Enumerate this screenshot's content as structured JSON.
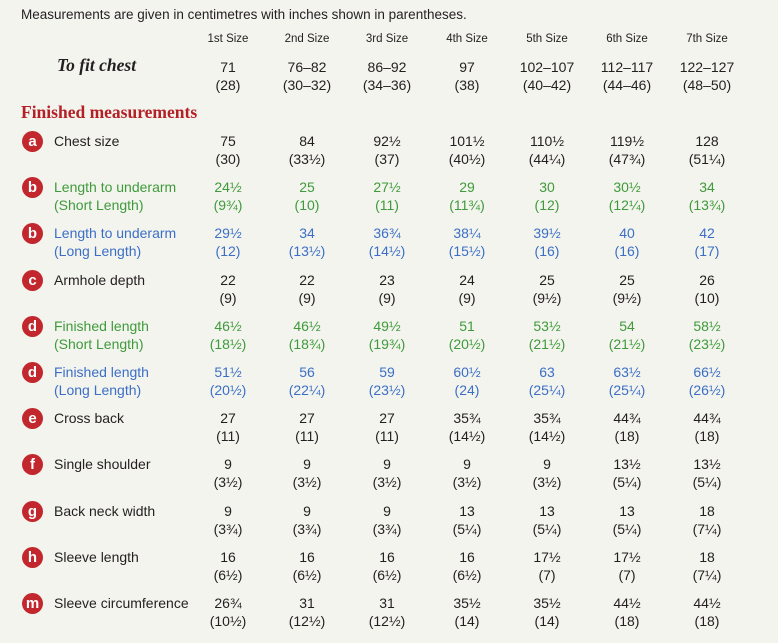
{
  "intro": "Measurements are given in centimetres with inches shown in parentheses.",
  "sizes": [
    "1st Size",
    "2nd Size",
    "3rd Size",
    "4th Size",
    "5th Size",
    "6th Size",
    "7th Size"
  ],
  "fit": {
    "label": "To fit chest",
    "cm": [
      "71",
      "76–82",
      "86–92",
      "97",
      "102–107",
      "112–117",
      "122–127"
    ],
    "in": [
      "(28)",
      "(30–32)",
      "(34–36)",
      "(38)",
      "(40–42)",
      "(44–46)",
      "(48–50)"
    ]
  },
  "section_title": "Finished measurements",
  "colors": {
    "accent": "#c1272d",
    "heading": "#b42025",
    "green": "#3e9a3b",
    "blue": "#3b6fc6",
    "text": "#231f20",
    "background": "#f4f4ee"
  },
  "rows": [
    {
      "badge": "a",
      "line1": "Chest size",
      "line2": "",
      "color": "black",
      "cm": [
        "75",
        "84",
        "92½",
        "101½",
        "110½",
        "119½",
        "128"
      ],
      "in": [
        "(30)",
        "(33½)",
        "(37)",
        "(40½)",
        "(44¼)",
        "(47¾)",
        "(51¼)"
      ]
    },
    {
      "badge": "b",
      "line1": "Length to underarm",
      "line2": "(Short Length)",
      "color": "green",
      "cm": [
        "24½",
        "25",
        "27½",
        "29",
        "30",
        "30½",
        "34"
      ],
      "in": [
        "(9¾)",
        "(10)",
        "(11)",
        "(11¾)",
        "(12)",
        "(12¼)",
        "(13¾)"
      ]
    },
    {
      "badge": "b",
      "line1": "Length to underarm",
      "line2": "(Long Length)",
      "color": "blue",
      "cm": [
        "29½",
        "34",
        "36¾",
        "38¼",
        "39½",
        "40",
        "42"
      ],
      "in": [
        "(12)",
        "(13½)",
        "(14½)",
        "(15½)",
        "(16)",
        "(16)",
        "(17)"
      ]
    },
    {
      "badge": "c",
      "line1": "Armhole depth",
      "line2": "",
      "color": "black",
      "cm": [
        "22",
        "22",
        "23",
        "24",
        "25",
        "25",
        "26"
      ],
      "in": [
        "(9)",
        "(9)",
        "(9)",
        "(9)",
        "(9½)",
        "(9½)",
        "(10)"
      ]
    },
    {
      "badge": "d",
      "line1": "Finished length",
      "line2": "(Short Length)",
      "color": "green",
      "cm": [
        "46½",
        "46½",
        "49½",
        "51",
        "53½",
        "54",
        "58½"
      ],
      "in": [
        "(18½)",
        "(18¾)",
        "(19¾)",
        "(20½)",
        "(21½)",
        "(21½)",
        "(23½)"
      ]
    },
    {
      "badge": "d",
      "line1": "Finished length",
      "line2": "(Long Length)",
      "color": "blue",
      "cm": [
        "51½",
        "56",
        "59",
        "60½",
        "63",
        "63½",
        "66½"
      ],
      "in": [
        "(20½)",
        "(22¼)",
        "(23½)",
        "(24)",
        "(25¼)",
        "(25¼)",
        "(26½)"
      ]
    },
    {
      "badge": "e",
      "line1": "Cross back",
      "line2": "",
      "color": "black",
      "cm": [
        "27",
        "27",
        "27",
        "35¾",
        "35¾",
        "44¾",
        "44¾"
      ],
      "in": [
        "(11)",
        "(11)",
        "(11)",
        "(14½)",
        "(14½)",
        "(18)",
        "(18)"
      ]
    },
    {
      "badge": "f",
      "line1": "Single shoulder",
      "line2": "",
      "color": "black",
      "cm": [
        "9",
        "9",
        "9",
        "9",
        "9",
        "13½",
        "13½"
      ],
      "in": [
        "(3½)",
        "(3½)",
        "(3½)",
        "(3½)",
        "(3½)",
        "(5¼)",
        "(5¼)"
      ]
    },
    {
      "badge": "g",
      "line1": "Back neck width",
      "line2": "",
      "color": "black",
      "cm": [
        "9",
        "9",
        "9",
        "13",
        "13",
        "13",
        "18"
      ],
      "in": [
        "(3¾)",
        "(3¾)",
        "(3¾)",
        "(5¼)",
        "(5¼)",
        "(5¼)",
        "(7¼)"
      ]
    },
    {
      "badge": "h",
      "line1": "Sleeve length",
      "line2": "",
      "color": "black",
      "cm": [
        "16",
        "16",
        "16",
        "16",
        "17½",
        "17½",
        "18"
      ],
      "in": [
        "(6½)",
        "(6½)",
        "(6½)",
        "(6½)",
        "(7)",
        "(7)",
        "(7¼)"
      ]
    },
    {
      "badge": "m",
      "line1": "Sleeve circumference",
      "line2": "",
      "color": "black",
      "cm": [
        "26¾",
        "31",
        "31",
        "35½",
        "35½",
        "44½",
        "44½"
      ],
      "in": [
        "(10½)",
        "(12½)",
        "(12½)",
        "(14)",
        "(14)",
        "(18)",
        "(18)"
      ]
    }
  ]
}
